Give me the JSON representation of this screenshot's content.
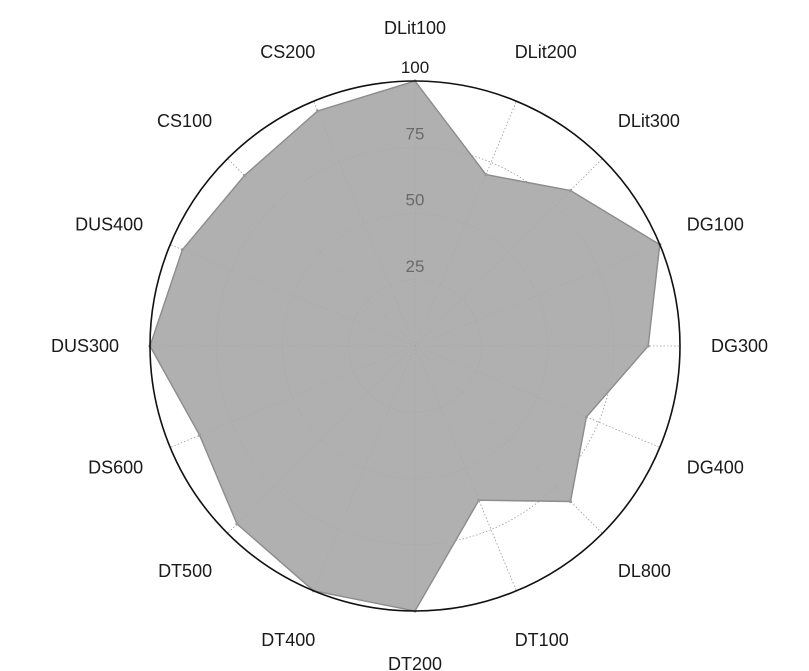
{
  "colors": {
    "area_fill": "#a9a9a9",
    "area_stroke": "#8c8c8c",
    "grid": "#9a9a9a",
    "outer_ring": "#111111",
    "background": "#ffffff"
  },
  "chart_data": {
    "type": "radar",
    "title": "",
    "categories": [
      "DLit100",
      "DLit200",
      "DLit300",
      "DG100",
      "DG300",
      "DG400",
      "DL800",
      "DT100",
      "DT200",
      "DT400",
      "DT500",
      "DS600",
      "DUS300",
      "DUS400",
      "CS100",
      "CS200"
    ],
    "series": [
      {
        "values": [
          100,
          70,
          83,
          100,
          88,
          70,
          83,
          63,
          100,
          100,
          95,
          88,
          100,
          95,
          91,
          96
        ]
      }
    ],
    "rlim": [
      0,
      100
    ],
    "rticks": [
      25,
      50,
      75,
      100
    ],
    "rtick_labels": [
      "25",
      "50",
      "75",
      "100"
    ],
    "grid": true,
    "legend": "none"
  }
}
